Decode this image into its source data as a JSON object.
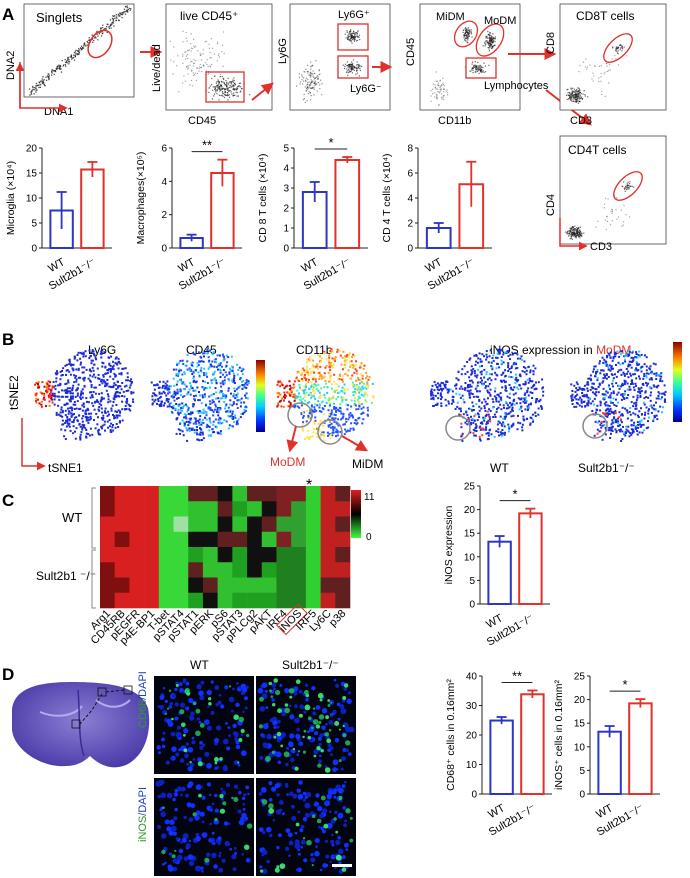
{
  "panel_labels": {
    "A": "A",
    "B": "B",
    "C": "C",
    "D": "D"
  },
  "facs": {
    "singlets": {
      "title": "Singlets",
      "x": "DNA1",
      "y": "DNA2"
    },
    "live": {
      "title": "live CD45⁺",
      "x": "CD45",
      "y": "Live/dead"
    },
    "ly6g": {
      "pos": "Ly6G⁺",
      "neg": "Ly6G⁻",
      "y": "Ly6G"
    },
    "cd45_cd11b": {
      "x": "CD11b",
      "y": "CD45",
      "midm": "MiDM",
      "modm": "MoDM",
      "lymph": "Lymphocytes"
    },
    "cd8t": {
      "title": "CD8T cells",
      "x": "CD3",
      "y": "CD8"
    },
    "cd4t": {
      "title": "CD4T cells",
      "x": "CD3",
      "y": "CD4"
    }
  },
  "colors": {
    "wt": "#2b35c8",
    "ko": "#e0312b",
    "gate": "#e0312b"
  },
  "chart_data": [
    {
      "type": "bar",
      "ylabel": "Microglia (×10⁴)",
      "categories": [
        "WT",
        "Sult2b1⁻/⁻"
      ],
      "values": [
        7.5,
        15.7
      ],
      "errors": [
        3.7,
        1.5
      ],
      "ylim": [
        0,
        20
      ],
      "yticks": [
        "0",
        "5",
        "10",
        "15",
        "20"
      ],
      "significance": ""
    },
    {
      "type": "bar",
      "ylabel": "Macrophages(×10⁵)",
      "categories": [
        "WT",
        "Sult2b1⁻/⁻"
      ],
      "values": [
        0.6,
        4.5
      ],
      "errors": [
        0.2,
        0.8
      ],
      "ylim": [
        0,
        6
      ],
      "yticks": [
        "0",
        "2",
        "4",
        "6"
      ],
      "significance": "**"
    },
    {
      "type": "bar",
      "ylabel": "CD 8 T cells (×10⁴)",
      "categories": [
        "WT",
        "Sult2b1⁻/⁻"
      ],
      "values": [
        2.8,
        4.4
      ],
      "errors": [
        0.5,
        0.15
      ],
      "ylim": [
        0,
        5
      ],
      "yticks": [
        "0",
        "1",
        "2",
        "3",
        "4",
        "5"
      ],
      "significance": "*"
    },
    {
      "type": "bar",
      "ylabel": "CD 4 T cells (×10⁴)",
      "categories": [
        "WT",
        "Sult2b1⁻/⁻"
      ],
      "values": [
        1.6,
        5.1
      ],
      "errors": [
        0.4,
        1.8
      ],
      "ylim": [
        0,
        8
      ],
      "yticks": [
        "0",
        "2",
        "4",
        "6",
        "8"
      ],
      "significance": ""
    },
    {
      "type": "bar",
      "ylabel": "iNOS  expression",
      "categories": [
        "WT",
        "Sult2b1⁻/⁻"
      ],
      "values": [
        13.2,
        19.2
      ],
      "errors": [
        1.2,
        1.0
      ],
      "ylim": [
        0,
        25
      ],
      "yticks": [
        "0",
        "5",
        "10",
        "15",
        "20",
        "25"
      ],
      "significance": "*"
    },
    {
      "type": "bar",
      "ylabel": "CD68⁺ cells in 0.16mm²",
      "categories": [
        "WT",
        "Sult2b1⁻/⁻"
      ],
      "values": [
        24.9,
        33.8
      ],
      "errors": [
        1.2,
        1.3
      ],
      "ylim": [
        0,
        40
      ],
      "yticks": [
        "0",
        "10",
        "20",
        "30",
        "40"
      ],
      "significance": "**"
    },
    {
      "type": "bar",
      "ylabel": "iNOS⁺ cells in 0.16mm²",
      "categories": [
        "WT",
        "Sult2b1⁻/⁻"
      ],
      "values": [
        13.2,
        19.2
      ],
      "errors": [
        1.2,
        0.9
      ],
      "ylim": [
        0,
        25
      ],
      "yticks": [
        "0",
        "5",
        "10",
        "15",
        "20",
        "25"
      ],
      "significance": "*"
    }
  ],
  "tsne": {
    "titles": [
      "Ly6G",
      "CD45",
      "CD11b"
    ],
    "inos_title": "iNOS  expression in",
    "inos_pop": "MoDM",
    "xlabel": "tSNE1",
    "ylabel": "tSNE2",
    "modm": "MoDM",
    "midm": "MiDM",
    "wt": "WT",
    "ko": "Sult2b1⁻/⁻"
  },
  "heatmap": {
    "markers": [
      "Arg1",
      "CD45RB",
      "pEGFR",
      "p4E-BP1",
      "T-bet",
      "pSTAT4",
      "pSTAT1",
      "pERK",
      "pS6",
      "pSTAT3",
      "pPLCg2",
      "pAKT",
      "IRF4",
      "iNOS",
      "IRF5",
      "Ly6C",
      "p38"
    ],
    "groups": [
      "WT",
      "Sult2b1 ⁻/⁻"
    ],
    "scale_max": "11",
    "scale_min": "0",
    "star": "*"
  },
  "histology": {
    "wt": "WT",
    "ko": "Sult2b1⁻/⁻",
    "row1": "CD68/DAPI",
    "row2": "iNOS/DAPI",
    "row1_green": "CD68",
    "row2_green": "iNOS",
    "dapi": "/DAPI"
  }
}
